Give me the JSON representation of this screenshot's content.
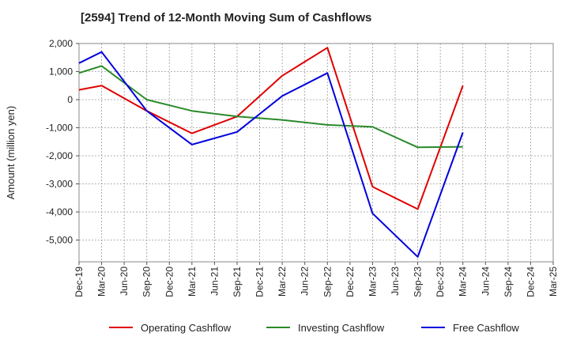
{
  "chart_data": {
    "type": "line",
    "title": "[2594]  Trend of 12-Month Moving Sum of Cashflows",
    "ylabel": "Amount (million yen)",
    "xlabel": "",
    "ylim": [
      -5800,
      2000
    ],
    "yticks": [
      2000,
      1000,
      0,
      -1000,
      -2000,
      -3000,
      -4000,
      -5000
    ],
    "ytick_labels": [
      "2,000",
      "1,000",
      "0",
      "-1,000",
      "-2,000",
      "-3,000",
      "-4,000",
      "-5,000"
    ],
    "categories": [
      "Dec-19",
      "Mar-20",
      "Jun-20",
      "Sep-20",
      "Dec-20",
      "Mar-21",
      "Jun-21",
      "Sep-21",
      "Dec-21",
      "Mar-22",
      "Jun-22",
      "Sep-22",
      "Dec-22",
      "Mar-23",
      "Jun-23",
      "Sep-23",
      "Dec-23",
      "Mar-24",
      "Jun-24",
      "Sep-24",
      "Dec-24",
      "Mar-25"
    ],
    "grid": true,
    "legend_position": "bottom",
    "series": [
      {
        "name": "Operating Cashflow",
        "color": "#e00000",
        "points": [
          [
            "Dec-19",
            350
          ],
          [
            "Mar-20",
            500
          ],
          [
            "Sep-20",
            -400
          ],
          [
            "Mar-21",
            -1200
          ],
          [
            "Sep-21",
            -600
          ],
          [
            "Mar-22",
            850
          ],
          [
            "Sep-22",
            1850
          ],
          [
            "Mar-23",
            -3100
          ],
          [
            "Sep-23",
            -3900
          ],
          [
            "Mar-24",
            500
          ]
        ]
      },
      {
        "name": "Investing Cashflow",
        "color": "#2a8a2a",
        "points": [
          [
            "Dec-19",
            950
          ],
          [
            "Mar-20",
            1200
          ],
          [
            "Sep-20",
            0
          ],
          [
            "Mar-21",
            -400
          ],
          [
            "Sep-21",
            -600
          ],
          [
            "Mar-22",
            -720
          ],
          [
            "Sep-22",
            -900
          ],
          [
            "Mar-23",
            -970
          ],
          [
            "Sep-23",
            -1700
          ],
          [
            "Mar-24",
            -1680
          ]
        ]
      },
      {
        "name": "Free Cashflow",
        "color": "#0000dd",
        "points": [
          [
            "Dec-19",
            1300
          ],
          [
            "Mar-20",
            1700
          ],
          [
            "Sep-20",
            -400
          ],
          [
            "Mar-21",
            -1600
          ],
          [
            "Sep-21",
            -1150
          ],
          [
            "Mar-22",
            130
          ],
          [
            "Sep-22",
            950
          ],
          [
            "Mar-23",
            -4050
          ],
          [
            "Sep-23",
            -5600
          ],
          [
            "Mar-24",
            -1170
          ]
        ]
      }
    ]
  }
}
